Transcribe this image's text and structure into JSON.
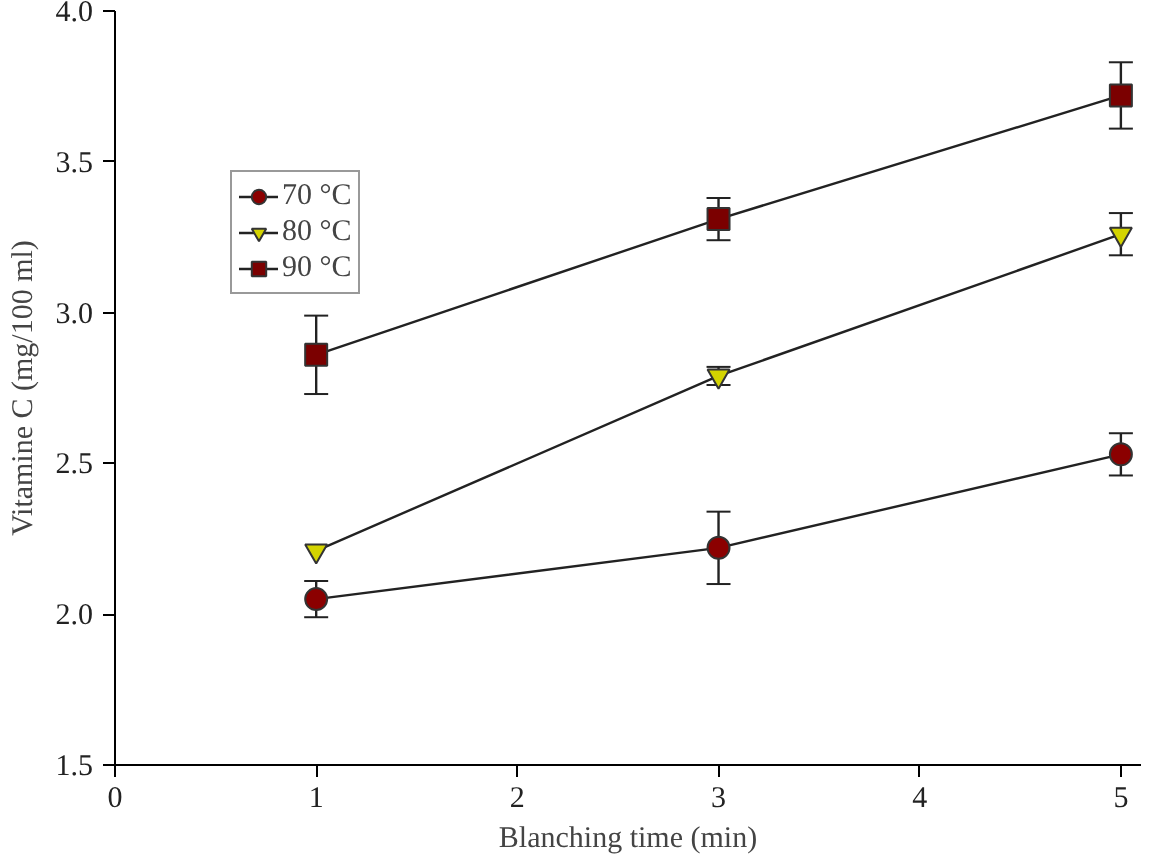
{
  "chart_data": {
    "type": "line",
    "xlabel": "Blanching time (min)",
    "ylabel": "Vitamine C (mg/100 ml)",
    "x": [
      1,
      3,
      5
    ],
    "series": [
      {
        "name": "70 °C",
        "color": "#8b0000",
        "marker": "circle",
        "values": [
          2.05,
          2.22,
          2.53
        ],
        "errors": [
          0.06,
          0.12,
          0.07
        ]
      },
      {
        "name": "80 °C",
        "color": "#d4d400",
        "marker": "triangle",
        "values": [
          2.21,
          2.79,
          3.26
        ],
        "errors": [
          null,
          0.03,
          0.07
        ]
      },
      {
        "name": "90 °C",
        "color": "#7b0000",
        "marker": "square",
        "values": [
          2.86,
          3.31,
          3.72
        ],
        "errors": [
          0.13,
          0.07,
          0.11
        ]
      }
    ],
    "xlim": [
      0,
      5.1
    ],
    "xticks": [
      0,
      1,
      2,
      3,
      4,
      5
    ],
    "ylim": [
      1.5,
      4.0
    ],
    "yticks": [
      {
        "value": 1.5,
        "label": "1.5"
      },
      {
        "value": 2.0,
        "label": "2.0"
      },
      {
        "value": 2.5,
        "label": "2.5"
      },
      {
        "value": 3.0,
        "label": "3.0"
      },
      {
        "value": 3.5,
        "label": "3.5"
      },
      {
        "value": 4.0,
        "label": "4.0"
      }
    ],
    "grid": false,
    "legend": "top left",
    "line_style": "solid"
  }
}
